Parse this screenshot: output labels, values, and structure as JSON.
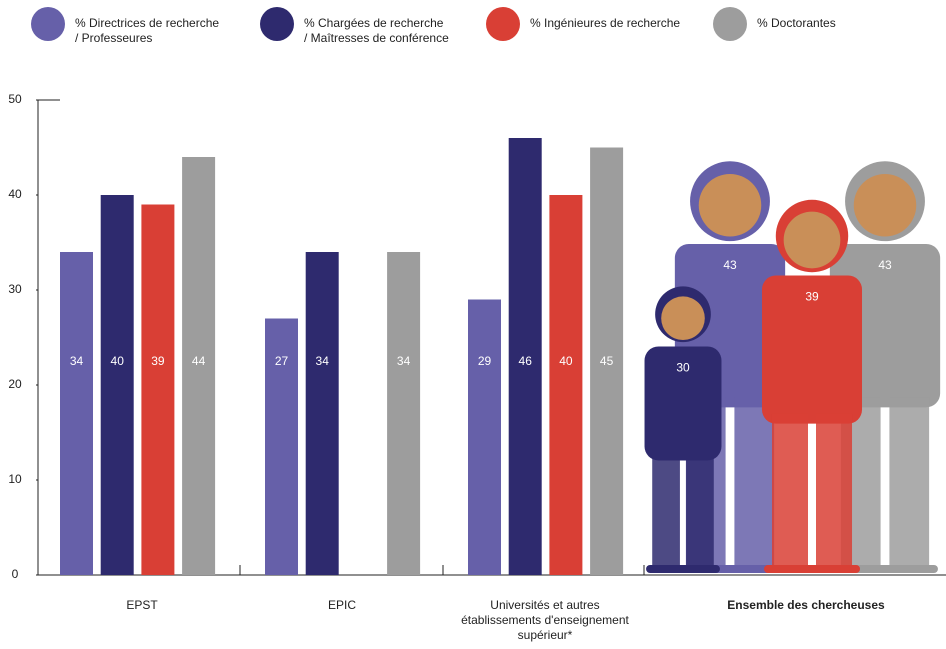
{
  "chart_data": {
    "type": "bar",
    "categories": [
      "EPST",
      "EPIC",
      "Universités et autres\nétablissements d'enseignement\nsupérieur*",
      "Ensemble des chercheuses"
    ],
    "series": [
      {
        "name": "% Directrices de recherche\n/ Professeures",
        "color": "#6660a9",
        "values": [
          34,
          27,
          29,
          43
        ]
      },
      {
        "name": "% Chargées de recherche\n/ Maîtresses de conférence",
        "color": "#2e2a6e",
        "values": [
          40,
          34,
          46,
          30
        ]
      },
      {
        "name": "% Ingénieures de recherche",
        "color": "#d93f35",
        "values": [
          39,
          null,
          40,
          39
        ]
      },
      {
        "name": "% Doctorantes",
        "color": "#9d9d9d",
        "values": [
          44,
          34,
          45,
          43
        ]
      }
    ],
    "ylim": [
      0,
      50
    ],
    "yticks": [
      0,
      10,
      20,
      30,
      40,
      50
    ]
  }
}
